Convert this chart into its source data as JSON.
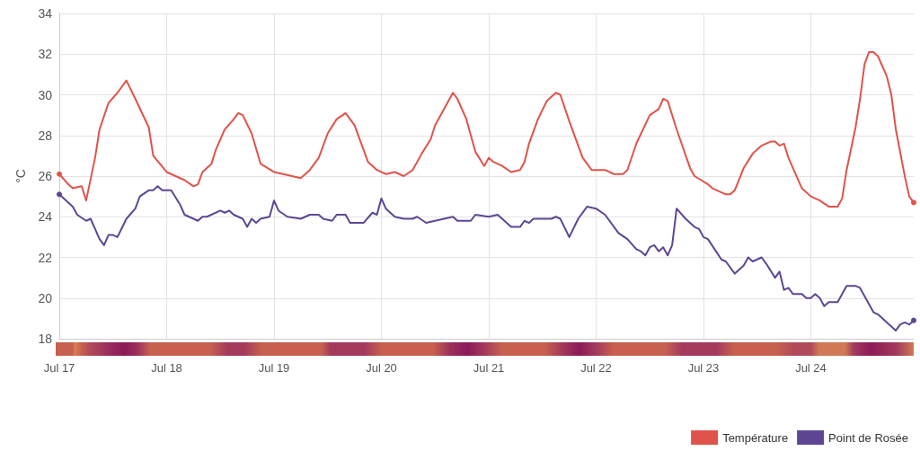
{
  "chart_data": {
    "type": "line",
    "ylabel": "°C",
    "xlim": [
      "--07-17T00:00",
      "--07-24T23:00"
    ],
    "ylim": [
      18,
      34
    ],
    "yticks": [
      18,
      20,
      22,
      24,
      26,
      28,
      30,
      32,
      34
    ],
    "xticks": [
      {
        "value": "--07-17",
        "label": "Jul 17"
      },
      {
        "value": "--07-18",
        "label": "Jul 18"
      },
      {
        "value": "--07-19",
        "label": "Jul 19"
      },
      {
        "value": "--07-20",
        "label": "Jul 20"
      },
      {
        "value": "--07-21",
        "label": "Jul 21"
      },
      {
        "value": "--07-22",
        "label": "Jul 22"
      },
      {
        "value": "--07-23",
        "label": "Jul 23"
      },
      {
        "value": "--07-24",
        "label": "Jul 24"
      }
    ],
    "grid": true,
    "legend": "bottom right",
    "line_style": "solid",
    "series": [
      {
        "name": "Température",
        "color": "#e0534a",
        "x": [
          "--07-17T00:00",
          "--07-17T02:00",
          "--07-17T03:00",
          "--07-17T05:00",
          "--07-17T06:00",
          "--07-17T08:00",
          "--07-17T09:00",
          "--07-17T11:00",
          "--07-17T13:00",
          "--07-17T15:00",
          "--07-17T17:00",
          "--07-17T20:00",
          "--07-17T21:00",
          "--07-18T00:00",
          "--07-18T03:00",
          "--07-18T04:00",
          "--07-18T06:00",
          "--07-18T07:00",
          "--07-18T08:00",
          "--07-18T10:00",
          "--07-18T11:00",
          "--07-18T13:00",
          "--07-18T15:00",
          "--07-18T16:00",
          "--07-18T17:00",
          "--07-18T19:00",
          "--07-18T21:00",
          "--07-19T00:00",
          "--07-19T04:00",
          "--07-19T06:00",
          "--07-19T08:00",
          "--07-19T10:00",
          "--07-19T12:00",
          "--07-19T14:00",
          "--07-19T16:00",
          "--07-19T18:00",
          "--07-19T21:00",
          "--07-19T23:00",
          "--07-20T01:00",
          "--07-20T03:00",
          "--07-20T05:00",
          "--07-20T07:00",
          "--07-20T09:00",
          "--07-20T11:00",
          "--07-20T12:00",
          "--07-20T16:00",
          "--07-20T17:00",
          "--07-20T19:00",
          "--07-20T21:00",
          "--07-20T23:00",
          "--07-21T00:00",
          "--07-21T01:00",
          "--07-21T03:00",
          "--07-21T05:00",
          "--07-21T07:00",
          "--07-21T08:00",
          "--07-21T09:00",
          "--07-21T11:00",
          "--07-21T13:00",
          "--07-21T15:00",
          "--07-21T16:00",
          "--07-21T18:00",
          "--07-21T20:00",
          "--07-21T21:00",
          "--07-21T23:00",
          "--07-22T02:00",
          "--07-22T04:00",
          "--07-22T06:00",
          "--07-22T07:00",
          "--07-22T09:00",
          "--07-22T12:00",
          "--07-22T14:00",
          "--07-22T15:00",
          "--07-22T16:00",
          "--07-22T18:00",
          "--07-22T21:00",
          "--07-22T22:00",
          "--07-23T01:00",
          "--07-23T02:00",
          "--07-23T05:00",
          "--07-23T06:00",
          "--07-23T07:00",
          "--07-23T09:00",
          "--07-23T11:00",
          "--07-23T13:00",
          "--07-23T15:00",
          "--07-23T16:00",
          "--07-23T17:00",
          "--07-23T18:00",
          "--07-23T19:00",
          "--07-23T22:00",
          "--07-24T00:00",
          "--07-24T02:00",
          "--07-24T04:00",
          "--07-24T06:00",
          "--07-24T07:00",
          "--07-24T08:00",
          "--07-24T10:00",
          "--07-24T11:00",
          "--07-24T12:00",
          "--07-24T13:00",
          "--07-24T14:00",
          "--07-24T15:00",
          "--07-24T17:00",
          "--07-24T18:00",
          "--07-24T19:00",
          "--07-24T21:00",
          "--07-24T22:00",
          "--07-24T23:00"
        ],
        "values": [
          26.1,
          25.6,
          25.4,
          25.5,
          24.8,
          26.9,
          28.3,
          29.6,
          30.1,
          30.7,
          29.8,
          28.4,
          27.0,
          26.2,
          25.9,
          25.8,
          25.5,
          25.6,
          26.2,
          26.6,
          27.3,
          28.3,
          28.8,
          29.1,
          29.0,
          28.1,
          26.6,
          26.2,
          26.0,
          25.9,
          26.3,
          26.9,
          28.1,
          28.8,
          29.1,
          28.5,
          26.7,
          26.3,
          26.1,
          26.2,
          26.0,
          26.3,
          27.1,
          27.8,
          28.5,
          30.1,
          29.8,
          28.8,
          27.2,
          26.5,
          26.9,
          26.7,
          26.5,
          26.2,
          26.3,
          26.7,
          27.6,
          28.8,
          29.7,
          30.1,
          30.0,
          28.7,
          27.5,
          26.9,
          26.3,
          26.3,
          26.1,
          26.1,
          26.3,
          27.6,
          29.0,
          29.3,
          29.8,
          29.7,
          28.3,
          26.4,
          26.0,
          25.6,
          25.4,
          25.1,
          25.1,
          25.3,
          26.4,
          27.1,
          27.5,
          27.7,
          27.7,
          27.5,
          27.6,
          26.9,
          25.4,
          25.0,
          24.8,
          24.5,
          24.5,
          24.9,
          26.3,
          28.4,
          29.8,
          31.5,
          32.1,
          32.1,
          31.9,
          30.9,
          30.0,
          28.3,
          26.0,
          25.0,
          24.7
        ]
      },
      {
        "name": "Point de Rosée",
        "color": "#5e4694",
        "x": [
          "--07-17T00:00",
          "--07-17T03:00",
          "--07-17T04:00",
          "--07-17T06:00",
          "--07-17T07:00",
          "--07-17T09:00",
          "--07-17T10:00",
          "--07-17T11:00",
          "--07-17T12:00",
          "--07-17T13:00",
          "--07-17T15:00",
          "--07-17T17:00",
          "--07-17T18:00",
          "--07-17T20:00",
          "--07-17T21:00",
          "--07-17T22:00",
          "--07-17T23:00",
          "--07-18T01:00",
          "--07-18T03:00",
          "--07-18T04:00",
          "--07-18T06:00",
          "--07-18T07:00",
          "--07-18T08:00",
          "--07-18T09:00",
          "--07-18T12:00",
          "--07-18T13:00",
          "--07-18T14:00",
          "--07-18T15:00",
          "--07-18T17:00",
          "--07-18T18:00",
          "--07-18T19:00",
          "--07-18T20:00",
          "--07-18T21:00",
          "--07-18T23:00",
          "--07-19T00:00",
          "--07-19T01:00",
          "--07-19T03:00",
          "--07-19T06:00",
          "--07-19T08:00",
          "--07-19T10:00",
          "--07-19T11:00",
          "--07-19T13:00",
          "--07-19T14:00",
          "--07-19T16:00",
          "--07-19T17:00",
          "--07-19T20:00",
          "--07-19T22:00",
          "--07-19T23:00",
          "--07-20T00:00",
          "--07-20T01:00",
          "--07-20T03:00",
          "--07-20T05:00",
          "--07-20T07:00",
          "--07-20T08:00",
          "--07-20T10:00",
          "--07-20T12:00",
          "--07-20T16:00",
          "--07-20T17:00",
          "--07-20T20:00",
          "--07-20T21:00",
          "--07-21T00:00",
          "--07-21T02:00",
          "--07-21T04:00",
          "--07-21T05:00",
          "--07-21T07:00",
          "--07-21T08:00",
          "--07-21T09:00",
          "--07-21T10:00",
          "--07-21T14:00",
          "--07-21T15:00",
          "--07-21T16:00",
          "--07-21T18:00",
          "--07-21T20:00",
          "--07-21T22:00",
          "--07-22T00:00",
          "--07-22T02:00",
          "--07-22T05:00",
          "--07-22T07:00",
          "--07-22T09:00",
          "--07-22T10:00",
          "--07-22T11:00",
          "--07-22T12:00",
          "--07-22T13:00",
          "--07-22T14:00",
          "--07-22T15:00",
          "--07-22T16:00",
          "--07-22T17:00",
          "--07-22T18:00",
          "--07-22T20:00",
          "--07-22T22:00",
          "--07-22T23:00",
          "--07-23T00:00",
          "--07-23T01:00",
          "--07-23T04:00",
          "--07-23T05:00",
          "--07-23T07:00",
          "--07-23T09:00",
          "--07-23T10:00",
          "--07-23T11:00",
          "--07-23T13:00",
          "--07-23T14:00",
          "--07-23T16:00",
          "--07-23T17:00",
          "--07-23T18:00",
          "--07-23T19:00",
          "--07-23T20:00",
          "--07-23T22:00",
          "--07-23T23:00",
          "--07-24T00:00",
          "--07-24T01:00",
          "--07-24T02:00",
          "--07-24T03:00",
          "--07-24T04:00",
          "--07-24T06:00",
          "--07-24T08:00",
          "--07-24T10:00",
          "--07-24T11:00",
          "--07-24T12:00",
          "--07-24T14:00",
          "--07-24T15:00",
          "--07-24T19:00",
          "--07-24T20:00",
          "--07-24T21:00",
          "--07-24T22:00",
          "--07-24T23:00"
        ],
        "values": [
          25.1,
          24.5,
          24.1,
          23.8,
          23.9,
          22.9,
          22.6,
          23.1,
          23.1,
          23.0,
          23.9,
          24.4,
          25.0,
          25.3,
          25.3,
          25.5,
          25.3,
          25.3,
          24.6,
          24.1,
          23.9,
          23.8,
          24.0,
          24.0,
          24.3,
          24.2,
          24.3,
          24.1,
          23.9,
          23.5,
          23.9,
          23.7,
          23.9,
          24.0,
          24.8,
          24.3,
          24.0,
          23.9,
          24.1,
          24.1,
          23.9,
          23.8,
          24.1,
          24.1,
          23.7,
          23.7,
          24.2,
          24.1,
          24.9,
          24.4,
          24.0,
          23.9,
          23.9,
          24.0,
          23.7,
          23.8,
          24.0,
          23.8,
          23.8,
          24.1,
          24.0,
          24.1,
          23.7,
          23.5,
          23.5,
          23.8,
          23.7,
          23.9,
          23.9,
          24.0,
          23.9,
          23.0,
          23.9,
          24.5,
          24.4,
          24.1,
          23.2,
          22.9,
          22.4,
          22.3,
          22.1,
          22.5,
          22.6,
          22.3,
          22.5,
          22.1,
          22.6,
          24.4,
          23.9,
          23.5,
          23.4,
          23.0,
          22.9,
          21.9,
          21.8,
          21.2,
          21.6,
          22.0,
          21.8,
          22.0,
          21.7,
          21.0,
          21.3,
          20.4,
          20.5,
          20.2,
          20.2,
          20.0,
          20.0,
          20.2,
          20.0,
          19.6,
          19.8,
          19.8,
          20.6,
          20.6,
          20.5,
          20.1,
          19.3,
          19.2,
          18.4,
          18.7,
          18.8,
          18.7,
          18.9
        ]
      }
    ]
  }
}
